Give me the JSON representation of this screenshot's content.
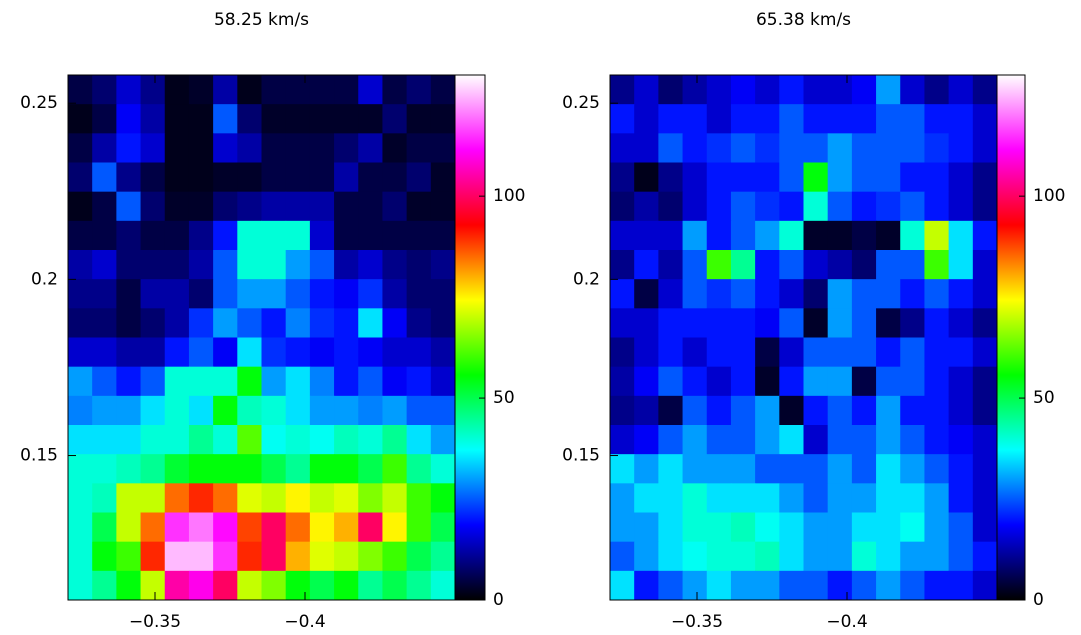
{
  "chart_data": [
    {
      "type": "heatmap",
      "title": "58.25 km/s",
      "xlim": [
        -0.321,
        -0.45
      ],
      "ylim": [
        0.109,
        0.258
      ],
      "xticks": [
        {
          "value": -0.35,
          "label": "−0.35"
        },
        {
          "value": -0.4,
          "label": "−0.4"
        }
      ],
      "yticks": [
        0.15,
        0.2,
        0.25
      ],
      "clim": [
        0,
        130
      ],
      "cticks": [
        0,
        50,
        100
      ],
      "colormap": [
        "#000000",
        "#0000ff",
        "#00ffff",
        "#00ff00",
        "#ffff00",
        "#ff0000",
        "#ff00ff",
        "#ffffff"
      ],
      "z": [
        [
          5,
          8,
          15,
          10,
          2,
          3,
          12,
          2,
          5,
          5,
          5,
          5,
          15,
          5,
          8,
          5
        ],
        [
          2,
          5,
          18,
          12,
          2,
          2,
          25,
          8,
          3,
          3,
          3,
          3,
          3,
          8,
          3,
          3
        ],
        [
          5,
          12,
          20,
          15,
          2,
          2,
          15,
          12,
          5,
          5,
          5,
          8,
          12,
          3,
          5,
          5
        ],
        [
          8,
          25,
          10,
          5,
          2,
          2,
          3,
          3,
          5,
          5,
          5,
          12,
          5,
          5,
          8,
          3
        ],
        [
          2,
          5,
          25,
          8,
          3,
          3,
          8,
          10,
          12,
          12,
          12,
          5,
          5,
          8,
          3,
          3
        ],
        [
          5,
          5,
          8,
          5,
          5,
          10,
          20,
          40,
          40,
          40,
          15,
          5,
          5,
          5,
          5,
          5
        ],
        [
          12,
          15,
          8,
          8,
          8,
          12,
          25,
          40,
          40,
          30,
          25,
          12,
          15,
          10,
          8,
          10
        ],
        [
          10,
          10,
          5,
          12,
          12,
          8,
          25,
          30,
          30,
          25,
          20,
          18,
          22,
          12,
          8,
          8
        ],
        [
          8,
          8,
          5,
          8,
          12,
          22,
          30,
          25,
          20,
          28,
          22,
          20,
          35,
          18,
          10,
          8
        ],
        [
          15,
          15,
          12,
          12,
          20,
          25,
          18,
          35,
          22,
          20,
          18,
          20,
          18,
          15,
          15,
          12
        ],
        [
          30,
          25,
          20,
          25,
          40,
          40,
          40,
          55,
          30,
          35,
          28,
          20,
          25,
          18,
          20,
          15
        ],
        [
          28,
          30,
          30,
          35,
          40,
          35,
          55,
          42,
          40,
          35,
          30,
          30,
          28,
          30,
          25,
          25
        ],
        [
          35,
          35,
          35,
          40,
          40,
          45,
          40,
          62,
          38,
          40,
          38,
          42,
          40,
          45,
          35,
          30
        ],
        [
          40,
          40,
          42,
          45,
          52,
          55,
          55,
          55,
          50,
          45,
          55,
          55,
          50,
          60,
          45,
          40
        ],
        [
          40,
          42,
          70,
          70,
          85,
          90,
          85,
          72,
          70,
          75,
          70,
          72,
          65,
          70,
          60,
          55
        ],
        [
          40,
          50,
          70,
          85,
          115,
          120,
          112,
          88,
          100,
          85,
          75,
          80,
          100,
          75,
          60,
          50
        ],
        [
          40,
          55,
          60,
          90,
          125,
          125,
          115,
          90,
          100,
          80,
          72,
          70,
          65,
          60,
          50,
          45
        ],
        [
          40,
          45,
          55,
          70,
          105,
          110,
          100,
          70,
          65,
          55,
          50,
          55,
          45,
          50,
          45,
          40
        ]
      ]
    },
    {
      "type": "heatmap",
      "title": "65.38 km/s",
      "xlim": [
        -0.321,
        -0.45
      ],
      "ylim": [
        0.109,
        0.258
      ],
      "xticks": [
        {
          "value": -0.35,
          "label": "−0.35"
        },
        {
          "value": -0.4,
          "label": "−0.4"
        }
      ],
      "yticks": [
        0.15,
        0.2,
        0.25
      ],
      "clim": [
        0,
        130
      ],
      "cticks": [
        0,
        50,
        100
      ],
      "colormap": [
        "#000000",
        "#0000ff",
        "#00ffff",
        "#00ff00",
        "#ffff00",
        "#ff0000",
        "#ff00ff",
        "#ffffff"
      ],
      "z": [
        [
          10,
          15,
          8,
          12,
          15,
          18,
          15,
          20,
          15,
          15,
          18,
          30,
          15,
          10,
          15,
          10
        ],
        [
          20,
          15,
          20,
          20,
          15,
          20,
          20,
          25,
          20,
          20,
          20,
          25,
          25,
          20,
          20,
          15
        ],
        [
          15,
          15,
          25,
          20,
          22,
          25,
          22,
          25,
          25,
          30,
          25,
          25,
          25,
          22,
          20,
          15
        ],
        [
          10,
          2,
          10,
          15,
          20,
          20,
          20,
          25,
          55,
          30,
          25,
          25,
          20,
          20,
          15,
          10
        ],
        [
          8,
          12,
          8,
          15,
          20,
          25,
          22,
          20,
          40,
          25,
          20,
          22,
          25,
          20,
          15,
          10
        ],
        [
          15,
          15,
          15,
          30,
          20,
          25,
          30,
          40,
          3,
          3,
          5,
          3,
          40,
          70,
          35,
          20
        ],
        [
          10,
          20,
          12,
          25,
          60,
          45,
          20,
          25,
          15,
          12,
          8,
          25,
          25,
          60,
          35,
          15
        ],
        [
          20,
          5,
          15,
          25,
          22,
          25,
          20,
          15,
          8,
          30,
          25,
          25,
          20,
          25,
          20,
          15
        ],
        [
          15,
          15,
          20,
          20,
          20,
          20,
          18,
          25,
          3,
          30,
          25,
          5,
          10,
          20,
          15,
          10
        ],
        [
          10,
          15,
          20,
          15,
          20,
          20,
          5,
          15,
          25,
          25,
          25,
          20,
          25,
          20,
          20,
          15
        ],
        [
          12,
          18,
          25,
          20,
          15,
          20,
          3,
          20,
          30,
          30,
          5,
          25,
          25,
          20,
          15,
          10
        ],
        [
          10,
          12,
          5,
          25,
          20,
          25,
          30,
          3,
          20,
          25,
          20,
          30,
          20,
          20,
          15,
          10
        ],
        [
          15,
          18,
          25,
          30,
          25,
          25,
          30,
          35,
          15,
          25,
          25,
          30,
          25,
          20,
          18,
          15
        ],
        [
          35,
          30,
          35,
          30,
          30,
          30,
          25,
          25,
          25,
          30,
          25,
          35,
          30,
          25,
          20,
          15
        ],
        [
          30,
          35,
          35,
          40,
          35,
          35,
          35,
          30,
          25,
          30,
          30,
          35,
          35,
          30,
          20,
          15
        ],
        [
          30,
          30,
          35,
          40,
          40,
          42,
          38,
          35,
          30,
          30,
          35,
          35,
          38,
          30,
          25,
          15
        ],
        [
          25,
          30,
          35,
          38,
          40,
          40,
          42,
          35,
          30,
          30,
          40,
          35,
          30,
          30,
          25,
          20
        ],
        [
          35,
          20,
          25,
          30,
          35,
          30,
          30,
          25,
          25,
          20,
          25,
          30,
          25,
          20,
          20,
          15
        ]
      ]
    }
  ]
}
